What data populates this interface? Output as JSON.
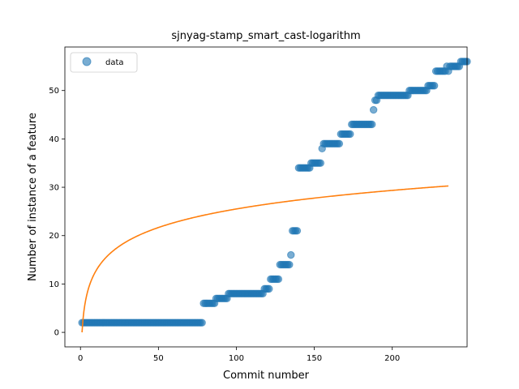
{
  "chart_data": {
    "type": "scatter",
    "title": "sjnyag-stamp_smart_cast-logarithm",
    "xlabel": "Commit number",
    "ylabel": "Number of instance of a feature",
    "xlim": [
      -10,
      248
    ],
    "ylim": [
      -3,
      59
    ],
    "xticks": [
      0,
      50,
      100,
      150,
      200
    ],
    "yticks": [
      0,
      10,
      20,
      30,
      40,
      50
    ],
    "grid": false,
    "legend": {
      "placement": "top-left",
      "entries": [
        "data"
      ]
    },
    "colors": {
      "data": "#1f77b4",
      "fit": "#ff7f0e"
    },
    "series": [
      {
        "name": "data",
        "kind": "scatter",
        "steps": [
          {
            "from": 1,
            "to": 78,
            "y": 2
          },
          {
            "from": 79,
            "to": 86,
            "y": 6
          },
          {
            "from": 87,
            "to": 94,
            "y": 7
          },
          {
            "from": 95,
            "to": 117,
            "y": 8
          },
          {
            "from": 118,
            "to": 121,
            "y": 9
          },
          {
            "from": 122,
            "to": 127,
            "y": 11
          },
          {
            "from": 128,
            "to": 134,
            "y": 14
          },
          {
            "from": 135,
            "to": 135,
            "y": 16
          },
          {
            "from": 136,
            "to": 139,
            "y": 21
          },
          {
            "from": 140,
            "to": 147,
            "y": 34
          },
          {
            "from": 148,
            "to": 154,
            "y": 35
          },
          {
            "from": 155,
            "to": 155,
            "y": 38
          },
          {
            "from": 156,
            "to": 166,
            "y": 39
          },
          {
            "from": 167,
            "to": 173,
            "y": 41
          },
          {
            "from": 174,
            "to": 187,
            "y": 43
          },
          {
            "from": 188,
            "to": 188,
            "y": 46
          },
          {
            "from": 189,
            "to": 190,
            "y": 48
          },
          {
            "from": 191,
            "to": 210,
            "y": 49
          },
          {
            "from": 211,
            "to": 222,
            "y": 50
          },
          {
            "from": 223,
            "to": 227,
            "y": 51
          },
          {
            "from": 228,
            "to": 234,
            "y": 54
          },
          {
            "from": 235,
            "to": 235,
            "y": 55
          },
          {
            "from": 236,
            "to": 236,
            "y": 54
          },
          {
            "from": 237,
            "to": 243,
            "y": 55
          },
          {
            "from": 244,
            "to": 248,
            "y": 56
          }
        ]
      },
      {
        "name": "",
        "kind": "line",
        "function": "y = 5.54 * ln(x)",
        "domain": [
          1,
          236
        ]
      }
    ]
  }
}
